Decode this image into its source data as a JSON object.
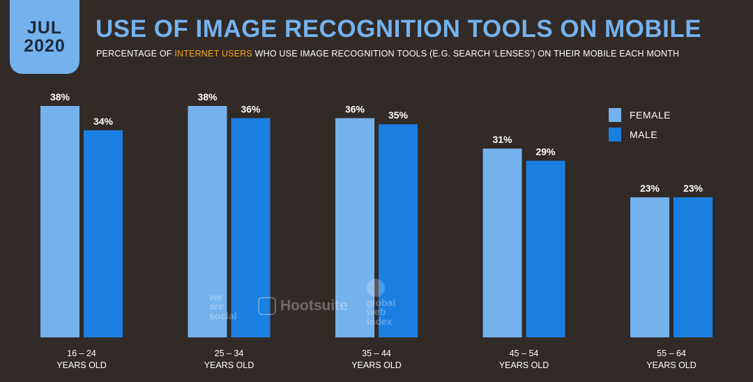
{
  "badge": {
    "month": "JUL",
    "year": "2020"
  },
  "title": "USE OF IMAGE RECOGNITION TOOLS ON MOBILE",
  "subtitle": {
    "before": "PERCENTAGE OF ",
    "highlight": "INTERNET USERS",
    "after": " WHO USE IMAGE RECOGNITION TOOLS (E.G. SEARCH ‘LENSES’) ON THEIR MOBILE EACH MONTH"
  },
  "watermarks": {
    "we_are_social": [
      "we",
      "are",
      "social"
    ],
    "hootsuite": "Hootsuite",
    "gwi": [
      "global",
      "web",
      "index"
    ]
  },
  "colors": {
    "background": "#322a26",
    "female": "#74b2ee",
    "male": "#1a7fe0",
    "highlight": "#f5a623"
  },
  "chart_data": {
    "type": "bar",
    "categories": [
      [
        "16 – 24",
        "YEARS OLD"
      ],
      [
        "25 – 34",
        "YEARS OLD"
      ],
      [
        "35 – 44",
        "YEARS OLD"
      ],
      [
        "45 – 54",
        "YEARS OLD"
      ],
      [
        "55 – 64",
        "YEARS OLD"
      ]
    ],
    "series": [
      {
        "name": "FEMALE",
        "values": [
          38,
          38,
          36,
          31,
          23
        ],
        "labels": [
          "38%",
          "38%",
          "36%",
          "31%",
          "23%"
        ]
      },
      {
        "name": "MALE",
        "values": [
          34,
          36,
          35,
          29,
          23
        ],
        "labels": [
          "34%",
          "36%",
          "35%",
          "29%",
          "23%"
        ]
      }
    ],
    "value_unit": "%",
    "ylim": [
      0,
      38
    ],
    "legend_position": "right",
    "grid": false
  }
}
